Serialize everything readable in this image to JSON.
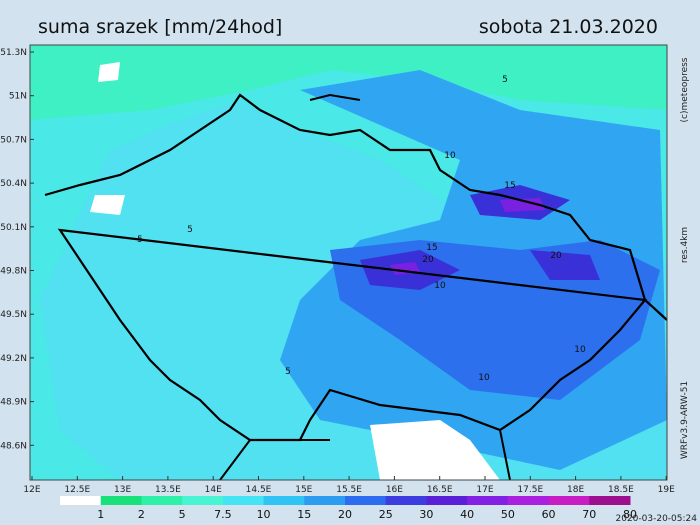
{
  "header": {
    "title": "suma srazek [mm/24hod]",
    "date": "sobota 21.03.2020"
  },
  "map": {
    "lat_labels": [
      "51.3N",
      "51N",
      "50.7N",
      "50.4N",
      "50.1N",
      "49.8N",
      "49.5N",
      "49.2N",
      "48.9N",
      "48.6N"
    ],
    "lon_labels": [
      "12E",
      "12.5E",
      "13E",
      "13.5E",
      "14E",
      "14.5E",
      "15E",
      "15.5E",
      "16E",
      "16.5E",
      "17E",
      "17.5E",
      "18E",
      "18.5E",
      "19E"
    ],
    "contour_labels": [
      {
        "text": "5",
        "id": "a"
      },
      {
        "text": "5",
        "id": "b"
      },
      {
        "text": "5",
        "id": "c"
      },
      {
        "text": "5",
        "id": "d"
      },
      {
        "text": "10",
        "id": "e"
      },
      {
        "text": "10",
        "id": "f"
      },
      {
        "text": "15",
        "id": "g"
      },
      {
        "text": "20",
        "id": "h"
      },
      {
        "text": "15",
        "id": "i"
      },
      {
        "text": "20",
        "id": "j"
      },
      {
        "text": "10",
        "id": "k"
      },
      {
        "text": "10",
        "id": "l"
      }
    ]
  },
  "legend": {
    "labels": [
      "1",
      "2",
      "5",
      "7.5",
      "10",
      "15",
      "20",
      "25",
      "30",
      "40",
      "50",
      "60",
      "70",
      "80"
    ],
    "colors": [
      "#ffffff",
      "#18e07a",
      "#2ef0a8",
      "#48f4d2",
      "#44e4f4",
      "#30c4f4",
      "#2c9cf0",
      "#2c6cf0",
      "#3c3ce0",
      "#5a20d8",
      "#8420e4",
      "#aa20e0",
      "#c81cc4",
      "#9c1090"
    ]
  },
  "side": {
    "copyright": "(c)meteopress",
    "resolution": "res.4km",
    "model": "WRFv3.9-ARW-51",
    "timestamp": "2020-03-20-05:24"
  }
}
